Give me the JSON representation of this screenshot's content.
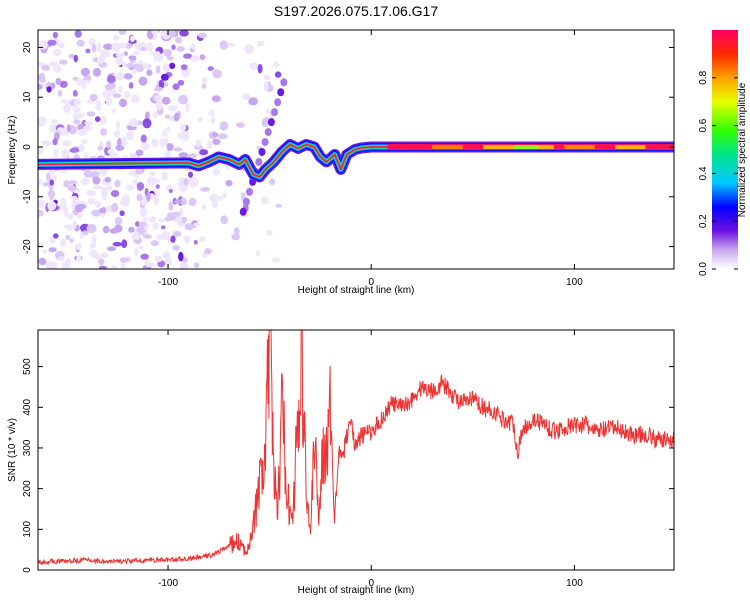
{
  "title": "S197.2026.075.17.06.G17",
  "chart_data": [
    {
      "type": "heatmap",
      "name": "spectrogram",
      "xlabel": "Height of straight line (km)",
      "ylabel": "Frequency (Hz)",
      "xlim": [
        -164,
        149
      ],
      "ylim": [
        -24.5,
        23.5
      ],
      "xticks": [
        -100,
        0,
        100
      ],
      "yticks": [
        -20,
        -10,
        0,
        10,
        20
      ],
      "xtick_labels": [
        "-100",
        "0",
        "100"
      ],
      "ytick_labels": [
        "-20",
        "-10",
        "0",
        "10",
        "20"
      ],
      "ridge": {
        "x": [
          -164,
          -90,
          -85,
          -80,
          -75,
          -70,
          -65,
          -62,
          -58,
          -55,
          -52,
          -48,
          -44,
          -40,
          -36,
          -32,
          -28,
          -25,
          -22,
          -18,
          -15,
          -12,
          -8,
          -5,
          0,
          10,
          30,
          60,
          100,
          149
        ],
        "freq": [
          -3.5,
          -3.2,
          -3.8,
          -3.0,
          -2.0,
          -2.5,
          -3.5,
          -2.5,
          -5.5,
          -6.0,
          -4.5,
          -3.0,
          -1.0,
          0.5,
          -0.3,
          0.5,
          0.0,
          -2.0,
          -3.0,
          -1.5,
          -4.5,
          -1.5,
          -0.5,
          -0.2,
          0.0,
          0.0,
          0.0,
          0.0,
          0.0,
          0.0
        ]
      },
      "colorbar": {
        "label": "Normalized spectral amplitude",
        "range": [
          0,
          1
        ],
        "ticks": [
          0.0,
          0.2,
          0.4,
          0.6,
          0.8
        ],
        "tick_labels": [
          "0.0",
          "0.2",
          "0.4",
          "0.6",
          "0.8"
        ]
      }
    },
    {
      "type": "line",
      "name": "snr",
      "xlabel": "Height of straight line (km)",
      "ylabel": "SNR (10 * v/v)",
      "xlim": [
        -164,
        149
      ],
      "ylim": [
        0,
        590
      ],
      "xticks": [
        -100,
        0,
        100
      ],
      "yticks": [
        0,
        100,
        200,
        300,
        400,
        500
      ],
      "xtick_labels": [
        "-100",
        "0",
        "100"
      ],
      "ytick_labels": [
        "0",
        "100",
        "200",
        "300",
        "400",
        "500"
      ],
      "series": [
        {
          "name": "SNR",
          "color": "#ee3333",
          "x": [
            -164,
            -150,
            -140,
            -130,
            -120,
            -110,
            -100,
            -90,
            -80,
            -75,
            -70,
            -65,
            -62,
            -58,
            -55,
            -52,
            -50,
            -48,
            -46,
            -44,
            -42,
            -40,
            -38,
            -36,
            -34,
            -32,
            -30,
            -28,
            -26,
            -24,
            -22,
            -20,
            -18,
            -16,
            -14,
            -12,
            -10,
            -8,
            -5,
            0,
            5,
            10,
            15,
            20,
            25,
            30,
            35,
            40,
            45,
            50,
            55,
            60,
            65,
            70,
            72,
            75,
            80,
            85,
            90,
            95,
            100,
            105,
            110,
            115,
            120,
            125,
            130,
            135,
            140,
            145,
            149
          ],
          "y": [
            20,
            22,
            25,
            20,
            22,
            24,
            25,
            28,
            35,
            45,
            60,
            70,
            40,
            110,
            200,
            290,
            580,
            230,
            150,
            380,
            260,
            120,
            180,
            380,
            500,
            200,
            90,
            300,
            150,
            260,
            340,
            380,
            120,
            300,
            280,
            330,
            380,
            300,
            330,
            340,
            370,
            410,
            400,
            420,
            450,
            440,
            460,
            430,
            410,
            420,
            400,
            390,
            370,
            360,
            290,
            350,
            370,
            360,
            340,
            350,
            355,
            360,
            340,
            345,
            350,
            340,
            330,
            335,
            320,
            320,
            320
          ]
        }
      ]
    }
  ]
}
